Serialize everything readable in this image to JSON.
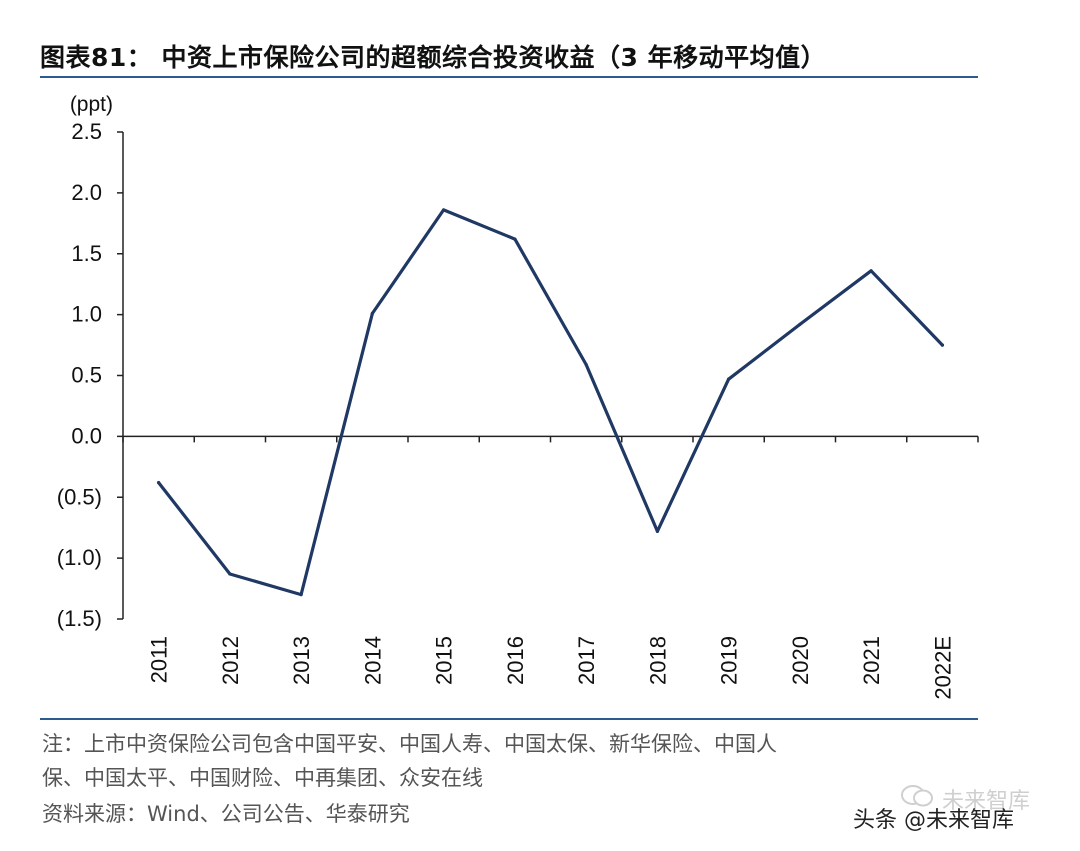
{
  "title": "图表81： 中资上市保险公司的超额综合投资收益（3 年移动平均值）",
  "chart_data": {
    "type": "line",
    "ylabel": "(ppt)",
    "ylim": [
      -1.5,
      2.5
    ],
    "yticks": [
      2.5,
      2.0,
      1.5,
      1.0,
      0.5,
      0.0,
      -0.5,
      -1.0,
      -1.5
    ],
    "ytick_labels": [
      "2.5",
      "2.0",
      "1.5",
      "1.0",
      "0.5",
      "0.0",
      "(0.5)",
      "(1.0)",
      "(1.5)"
    ],
    "categories": [
      "2011",
      "2012",
      "2013",
      "2014",
      "2015",
      "2016",
      "2017",
      "2018",
      "2019",
      "2020",
      "2021",
      "2022E"
    ],
    "series": [
      {
        "name": "超额综合投资收益",
        "values": [
          -0.38,
          -1.13,
          -1.3,
          1.01,
          1.86,
          1.62,
          0.59,
          -0.78,
          0.47,
          0.92,
          1.36,
          0.75
        ]
      }
    ],
    "grid": false,
    "line_color": "#1f3864"
  },
  "notes": {
    "line1": "注：上市中资保险公司包含中国平安、中国人寿、中国太保、新华保险、中国人",
    "line2": "保、中国太平、中国财险、中再集团、众安在线",
    "source": "资料来源：Wind、公司公告、华泰研究"
  },
  "watermarks": {
    "account": "未来智库",
    "platform": "头条 @未来智库"
  },
  "colors": {
    "rule": "#2c5b8f",
    "line": "#1f3864"
  }
}
